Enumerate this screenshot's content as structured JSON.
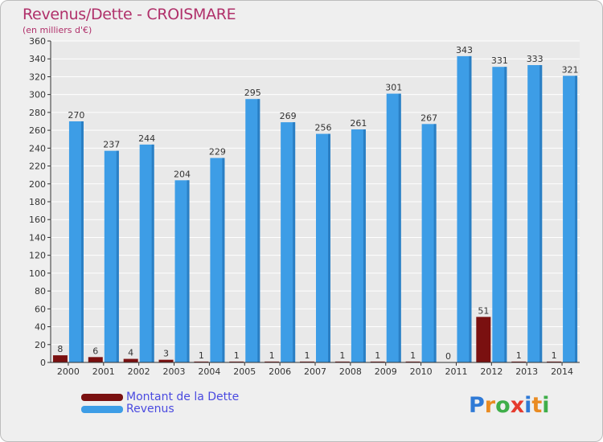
{
  "header": {
    "title": "Revenus/Dette - CROISMARE",
    "subtitle": "(en milliers d'€)"
  },
  "logo": {
    "text": "Proxiti",
    "letters": [
      {
        "ch": "P",
        "color": "#2f7ad6"
      },
      {
        "ch": "r",
        "color": "#e98b22"
      },
      {
        "ch": "o",
        "color": "#3fae49"
      },
      {
        "ch": "x",
        "color": "#e53a2d"
      },
      {
        "ch": "i",
        "color": "#2f7ad6"
      },
      {
        "ch": "t",
        "color": "#e98b22"
      },
      {
        "ch": "i",
        "color": "#3fae49"
      }
    ]
  },
  "colors": {
    "revenus": "#3d9de6",
    "dette": "#7a1010",
    "grid": "#ffffff",
    "axis": "#333333"
  },
  "chart_data": {
    "type": "bar",
    "title": "Revenus/Dette - CROISMARE",
    "ylabel": "(en milliers d'€)",
    "categories": [
      "2000",
      "2001",
      "2002",
      "2003",
      "2004",
      "2005",
      "2006",
      "2007",
      "2008",
      "2009",
      "2010",
      "2011",
      "2012",
      "2013",
      "2014"
    ],
    "ylim": [
      0,
      360
    ],
    "yticks": [
      0,
      20,
      40,
      60,
      80,
      100,
      120,
      140,
      160,
      180,
      200,
      220,
      240,
      260,
      280,
      300,
      320,
      340,
      360
    ],
    "grid": true,
    "legend_position": "bottom-left",
    "series": [
      {
        "name": "Montant de la Dette",
        "color": "#7a1010",
        "values": [
          8,
          6,
          4,
          3,
          1,
          1,
          1,
          1,
          1,
          1,
          1,
          0,
          51,
          1,
          1
        ]
      },
      {
        "name": "Revenus",
        "color": "#3d9de6",
        "values": [
          270,
          237,
          244,
          204,
          229,
          295,
          269,
          256,
          261,
          301,
          267,
          343,
          331,
          333,
          321
        ]
      }
    ]
  }
}
